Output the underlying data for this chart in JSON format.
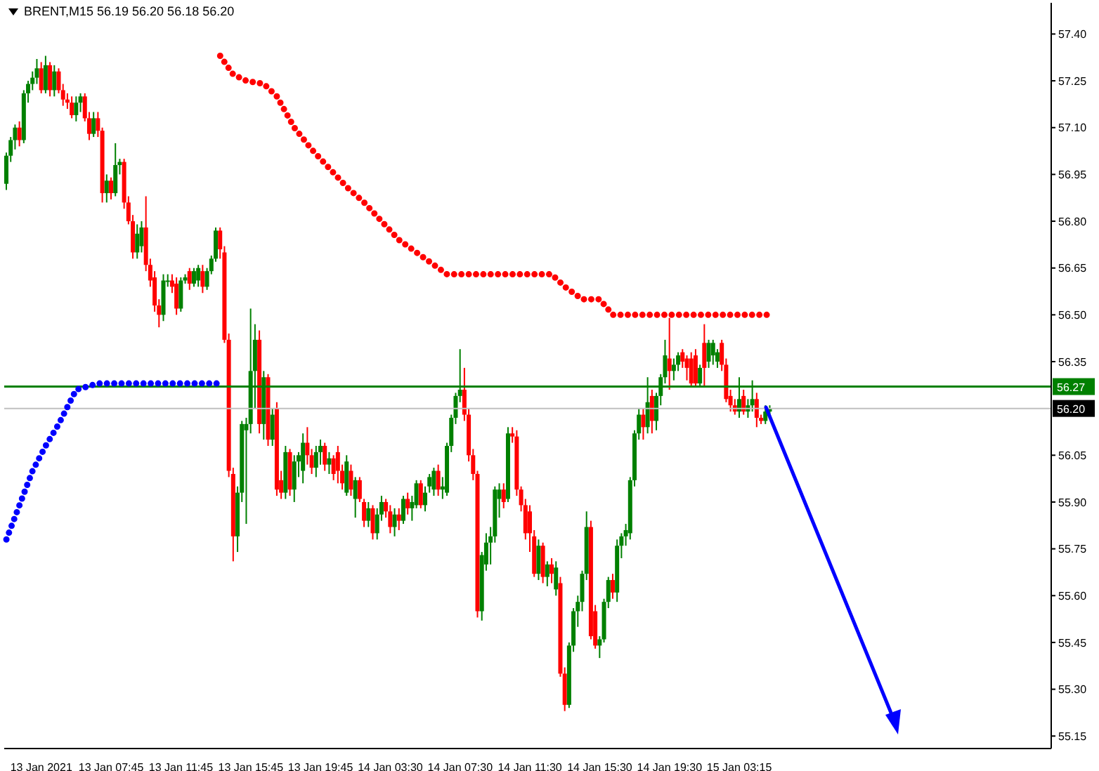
{
  "chart_data": {
    "type": "candlestick",
    "title": "BRENT,M15 56.19 56.20 56.18 56.20",
    "categories": [
      null,
      null,
      null,
      null,
      null,
      null,
      null,
      null,
      "13 Jan 2021",
      null,
      null,
      null,
      null,
      null,
      null,
      null,
      null,
      null,
      null,
      null,
      null,
      null,
      null,
      null,
      "13 Jan 07:45",
      null,
      null,
      null,
      null,
      null,
      null,
      null,
      null,
      null,
      null,
      null,
      null,
      null,
      null,
      null,
      "13 Jan 11:45",
      null,
      null,
      null,
      null,
      null,
      null,
      null,
      null,
      null,
      null,
      null,
      null,
      null,
      null,
      null,
      "13 Jan 15:45",
      null,
      null,
      null,
      null,
      null,
      null,
      null,
      null,
      null,
      null,
      null,
      null,
      null,
      null,
      null,
      "13 Jan 19:45",
      null,
      null,
      null,
      null,
      null,
      null,
      null,
      null,
      null,
      null,
      null,
      null,
      null,
      null,
      null,
      "14 Jan 03:30",
      null,
      null,
      null,
      null,
      null,
      null,
      null,
      null,
      null,
      null,
      null,
      null,
      null,
      null,
      null,
      "14 Jan 07:30",
      null,
      null,
      null,
      null,
      null,
      null,
      null,
      null,
      null,
      null,
      null,
      null,
      null,
      null,
      null,
      "14 Jan 11:30",
      null,
      null,
      null,
      null,
      null,
      null,
      null,
      null,
      null,
      null,
      null,
      null,
      null,
      null,
      null,
      "14 Jan 15:30",
      null,
      null,
      null,
      null,
      null,
      null,
      null,
      null,
      null,
      null,
      null,
      null,
      null,
      null,
      null,
      "14 Jan 19:30",
      null,
      null,
      null,
      null,
      null,
      null,
      null,
      null,
      null,
      null,
      null,
      null,
      null,
      null,
      null,
      "15 Jan 03:15",
      null,
      null,
      null,
      null,
      null,
      null,
      null,
      null,
      null,
      null,
      null,
      null,
      null,
      null,
      null,
      null,
      null,
      null,
      null,
      null,
      null,
      null,
      null,
      null,
      null,
      null,
      null,
      null,
      null,
      null,
      null,
      null,
      null,
      null,
      null,
      null,
      null,
      null,
      null,
      null,
      null,
      null,
      null,
      null,
      null,
      null,
      null,
      null,
      null,
      null,
      null,
      null,
      null,
      null,
      null,
      null,
      null,
      null,
      null,
      null,
      null,
      null,
      null,
      null,
      null,
      null,
      null,
      null,
      null,
      null,
      null
    ],
    "ohlc": [
      [
        56.92,
        57.02,
        56.9,
        57.01
      ],
      [
        57.01,
        57.07,
        56.99,
        57.06
      ],
      [
        57.06,
        57.11,
        57.03,
        57.1
      ],
      [
        57.1,
        57.12,
        57.04,
        57.06
      ],
      [
        57.06,
        57.22,
        57.05,
        57.21
      ],
      [
        57.21,
        57.25,
        57.18,
        57.24
      ],
      [
        57.24,
        57.28,
        57.22,
        57.26
      ],
      [
        57.26,
        57.32,
        57.24,
        57.29
      ],
      [
        57.29,
        57.31,
        57.21,
        57.22
      ],
      [
        57.22,
        57.33,
        57.21,
        57.3
      ],
      [
        57.3,
        57.31,
        57.2,
        57.22
      ],
      [
        57.22,
        57.3,
        57.2,
        57.28
      ],
      [
        57.28,
        57.29,
        57.21,
        57.22
      ],
      [
        57.22,
        57.24,
        57.17,
        57.19
      ],
      [
        57.19,
        57.21,
        57.16,
        57.18
      ],
      [
        57.18,
        57.2,
        57.13,
        57.14
      ],
      [
        57.14,
        57.2,
        57.12,
        57.18
      ],
      [
        57.18,
        57.21,
        57.15,
        57.2
      ],
      [
        57.2,
        57.21,
        57.12,
        57.13
      ],
      [
        57.13,
        57.15,
        57.06,
        57.08
      ],
      [
        57.08,
        57.15,
        57.07,
        57.13
      ],
      [
        57.13,
        57.15,
        57.07,
        57.09
      ],
      [
        57.09,
        57.1,
        56.86,
        56.89
      ],
      [
        56.89,
        56.95,
        56.86,
        56.93
      ],
      [
        56.93,
        56.94,
        56.87,
        56.89
      ],
      [
        56.89,
        57.05,
        56.88,
        56.98
      ],
      [
        56.98,
        57.0,
        56.95,
        56.99
      ],
      [
        56.99,
        57.0,
        56.84,
        56.86
      ],
      [
        56.86,
        56.88,
        56.79,
        56.8
      ],
      [
        56.8,
        56.82,
        56.68,
        56.7
      ],
      [
        56.7,
        56.79,
        56.68,
        56.76
      ],
      [
        56.72,
        56.8,
        56.7,
        56.78
      ],
      [
        56.78,
        56.88,
        56.64,
        56.66
      ],
      [
        56.66,
        56.68,
        56.59,
        56.61
      ],
      [
        56.62,
        56.64,
        56.51,
        56.53
      ],
      [
        56.53,
        56.55,
        56.46,
        56.5
      ],
      [
        56.5,
        56.63,
        56.48,
        56.61
      ],
      [
        56.61,
        56.63,
        56.59,
        56.61
      ],
      [
        56.61,
        56.63,
        56.57,
        56.59
      ],
      [
        56.6,
        56.62,
        56.5,
        56.52
      ],
      [
        56.52,
        56.62,
        56.51,
        56.61
      ],
      [
        56.61,
        56.63,
        56.6,
        56.62
      ],
      [
        56.64,
        56.65,
        56.58,
        56.6
      ],
      [
        56.6,
        56.65,
        56.59,
        56.64
      ],
      [
        56.61,
        56.66,
        56.59,
        56.65
      ],
      [
        56.64,
        56.66,
        56.57,
        56.59
      ],
      [
        56.59,
        56.65,
        56.58,
        56.64
      ],
      [
        56.64,
        56.69,
        56.63,
        56.68
      ],
      [
        56.68,
        56.78,
        56.67,
        56.77
      ],
      [
        56.77,
        56.78,
        56.68,
        56.71
      ],
      [
        56.7,
        56.72,
        56.41,
        56.42
      ],
      [
        56.42,
        56.44,
        55.98,
        56.0
      ],
      [
        55.99,
        56.01,
        55.71,
        55.79
      ],
      [
        55.79,
        55.95,
        55.74,
        55.93
      ],
      [
        55.93,
        56.16,
        55.9,
        56.15
      ],
      [
        56.13,
        56.17,
        55.83,
        56.15
      ],
      [
        56.15,
        56.52,
        56.12,
        56.32
      ],
      [
        56.32,
        56.47,
        56.2,
        56.42
      ],
      [
        56.42,
        56.45,
        56.12,
        56.15
      ],
      [
        56.15,
        56.32,
        56.1,
        56.3
      ],
      [
        56.3,
        56.31,
        56.08,
        56.1
      ],
      [
        56.1,
        56.2,
        56.08,
        56.18
      ],
      [
        56.2,
        56.22,
        55.92,
        55.94
      ],
      [
        55.97,
        56.0,
        55.91,
        55.93
      ],
      [
        55.93,
        56.08,
        55.91,
        56.06
      ],
      [
        56.06,
        56.07,
        55.92,
        55.94
      ],
      [
        55.94,
        56.05,
        55.9,
        56.03
      ],
      [
        56.03,
        56.06,
        55.98,
        56.05
      ],
      [
        56.0,
        56.12,
        55.96,
        56.09
      ],
      [
        56.09,
        56.14,
        56.02,
        56.05
      ],
      [
        56.05,
        56.07,
        55.99,
        56.01
      ],
      [
        56.01,
        56.08,
        55.98,
        56.06
      ],
      [
        56.06,
        56.1,
        56.02,
        56.08
      ],
      [
        56.08,
        56.09,
        56.0,
        56.02
      ],
      [
        56.02,
        56.06,
        55.99,
        56.04
      ],
      [
        56.04,
        56.05,
        55.97,
        55.99
      ],
      [
        56.06,
        56.08,
        55.96,
        56.0
      ],
      [
        56.0,
        56.02,
        55.94,
        55.96
      ],
      [
        55.93,
        56.05,
        55.92,
        56.03
      ],
      [
        56.0,
        56.02,
        55.92,
        55.94
      ],
      [
        55.91,
        55.98,
        55.85,
        55.97
      ],
      [
        55.97,
        55.98,
        55.9,
        55.91
      ],
      [
        55.9,
        55.91,
        55.82,
        55.84
      ],
      [
        55.84,
        55.9,
        55.82,
        55.88
      ],
      [
        55.88,
        55.89,
        55.78,
        55.8
      ],
      [
        55.8,
        55.88,
        55.78,
        55.86
      ],
      [
        55.86,
        55.92,
        55.84,
        55.9
      ],
      [
        55.9,
        55.91,
        55.85,
        55.87
      ],
      [
        55.87,
        55.89,
        55.8,
        55.82
      ],
      [
        55.82,
        55.88,
        55.79,
        55.86
      ],
      [
        55.86,
        55.88,
        55.81,
        55.84
      ],
      [
        55.84,
        55.92,
        55.83,
        55.91
      ],
      [
        55.91,
        55.93,
        55.86,
        55.88
      ],
      [
        55.88,
        55.92,
        55.84,
        55.9
      ],
      [
        55.89,
        55.97,
        55.88,
        55.96
      ],
      [
        55.96,
        55.97,
        55.88,
        55.89
      ],
      [
        55.89,
        55.95,
        55.87,
        55.93
      ],
      [
        55.95,
        55.99,
        55.93,
        55.98
      ],
      [
        55.94,
        56.01,
        55.92,
        56.0
      ],
      [
        56.0,
        56.02,
        55.92,
        55.94
      ],
      [
        55.94,
        55.98,
        55.91,
        55.95
      ],
      [
        55.93,
        56.09,
        55.92,
        56.08
      ],
      [
        56.08,
        56.18,
        56.06,
        56.17
      ],
      [
        56.17,
        56.25,
        56.15,
        56.24
      ],
      [
        56.24,
        56.39,
        56.22,
        56.26
      ],
      [
        56.26,
        56.33,
        56.16,
        56.18
      ],
      [
        56.18,
        56.2,
        56.03,
        56.05
      ],
      [
        56.05,
        56.07,
        55.97,
        55.99
      ],
      [
        55.99,
        56.0,
        55.53,
        55.55
      ],
      [
        55.55,
        55.74,
        55.52,
        55.73
      ],
      [
        55.7,
        55.8,
        55.68,
        55.77
      ],
      [
        55.77,
        55.82,
        55.7,
        55.79
      ],
      [
        55.79,
        55.95,
        55.77,
        55.94
      ],
      [
        55.91,
        55.96,
        55.85,
        55.94
      ],
      [
        55.94,
        55.96,
        55.88,
        55.9
      ],
      [
        55.91,
        56.14,
        55.9,
        56.12
      ],
      [
        56.12,
        56.14,
        56.09,
        56.11
      ],
      [
        56.11,
        56.13,
        55.92,
        55.94
      ],
      [
        55.94,
        55.95,
        55.87,
        55.89
      ],
      [
        55.89,
        55.91,
        55.78,
        55.8
      ],
      [
        55.87,
        55.89,
        55.74,
        55.8
      ],
      [
        55.79,
        55.81,
        55.66,
        55.67
      ],
      [
        55.67,
        55.78,
        55.65,
        55.76
      ],
      [
        55.76,
        55.77,
        55.64,
        55.66
      ],
      [
        55.66,
        55.71,
        55.63,
        55.7
      ],
      [
        55.7,
        55.72,
        55.64,
        55.67
      ],
      [
        55.62,
        55.71,
        55.6,
        55.69
      ],
      [
        55.64,
        55.66,
        55.34,
        55.35
      ],
      [
        55.35,
        55.37,
        55.23,
        55.25
      ],
      [
        55.25,
        55.45,
        55.24,
        55.44
      ],
      [
        55.44,
        55.56,
        55.42,
        55.55
      ],
      [
        55.55,
        55.6,
        55.5,
        55.58
      ],
      [
        55.58,
        55.68,
        55.55,
        55.67
      ],
      [
        55.67,
        55.87,
        55.65,
        55.82
      ],
      [
        55.82,
        55.84,
        55.46,
        55.47
      ],
      [
        55.55,
        55.57,
        55.43,
        55.44
      ],
      [
        55.44,
        55.47,
        55.4,
        55.46
      ],
      [
        55.46,
        55.59,
        55.45,
        55.58
      ],
      [
        55.58,
        55.66,
        55.56,
        55.65
      ],
      [
        55.65,
        55.67,
        55.59,
        55.61
      ],
      [
        55.61,
        55.78,
        55.58,
        55.76
      ],
      [
        55.76,
        55.8,
        55.72,
        55.79
      ],
      [
        55.79,
        55.83,
        55.76,
        55.81
      ],
      [
        55.8,
        55.98,
        55.78,
        55.97
      ],
      [
        55.97,
        56.13,
        55.95,
        56.12
      ],
      [
        56.12,
        56.2,
        56.1,
        56.18
      ],
      [
        56.18,
        56.2,
        56.1,
        56.14
      ],
      [
        56.14,
        56.3,
        56.12,
        56.22
      ],
      [
        56.24,
        56.26,
        56.12,
        56.16
      ],
      [
        56.16,
        56.25,
        56.13,
        56.24
      ],
      [
        56.24,
        56.31,
        56.21,
        56.3
      ],
      [
        56.3,
        56.42,
        56.28,
        56.37
      ],
      [
        56.36,
        56.49,
        56.26,
        56.32
      ],
      [
        56.32,
        56.36,
        56.29,
        56.34
      ],
      [
        56.34,
        56.38,
        56.32,
        56.37
      ],
      [
        56.38,
        56.39,
        56.33,
        56.35
      ],
      [
        56.36,
        56.37,
        56.29,
        56.33
      ],
      [
        56.36,
        56.38,
        56.27,
        56.28
      ],
      [
        56.37,
        56.39,
        56.27,
        56.28
      ],
      [
        56.28,
        56.34,
        56.27,
        56.33
      ],
      [
        56.41,
        56.47,
        56.27,
        56.33
      ],
      [
        56.35,
        56.42,
        56.33,
        56.41
      ],
      [
        56.37,
        56.42,
        56.34,
        56.41
      ],
      [
        56.35,
        56.39,
        56.33,
        56.38
      ],
      [
        56.41,
        56.42,
        56.32,
        56.34
      ],
      [
        56.34,
        56.36,
        56.22,
        56.23
      ],
      [
        56.24,
        56.26,
        56.19,
        56.21
      ],
      [
        56.21,
        56.23,
        56.18,
        56.19
      ],
      [
        56.19,
        56.3,
        56.17,
        56.23
      ],
      [
        56.24,
        56.26,
        56.18,
        56.19
      ],
      [
        56.19,
        56.23,
        56.17,
        56.21
      ],
      [
        56.21,
        56.29,
        56.19,
        56.23
      ],
      [
        56.23,
        56.25,
        56.14,
        56.17
      ],
      [
        56.17,
        56.18,
        56.15,
        56.16
      ],
      [
        56.16,
        56.21,
        56.15,
        56.19
      ],
      [
        56.19,
        56.21,
        56.18,
        56.2
      ],
      null,
      null,
      null,
      null,
      null,
      null,
      null,
      null,
      null,
      null,
      null,
      null,
      null,
      null,
      null,
      null,
      null,
      null,
      null,
      null,
      null,
      null,
      null,
      null,
      null,
      null,
      null,
      null,
      null,
      null,
      null,
      null,
      null,
      null,
      null,
      null,
      null,
      null,
      null,
      null,
      null,
      null,
      null,
      null,
      null,
      null,
      null,
      null,
      null,
      null,
      null,
      null,
      null,
      null,
      null,
      null,
      null,
      null,
      null,
      null,
      null,
      null,
      null,
      null
    ],
    "series": [
      {
        "type": "line",
        "color": "#ff0000",
        "line_style": "dotted",
        "values": [
          null,
          null,
          null,
          null,
          null,
          null,
          null,
          null,
          null,
          null,
          null,
          null,
          null,
          null,
          null,
          null,
          null,
          null,
          null,
          null,
          null,
          null,
          null,
          null,
          null,
          null,
          null,
          null,
          null,
          null,
          null,
          null,
          null,
          null,
          null,
          null,
          null,
          null,
          null,
          null,
          null,
          null,
          null,
          null,
          null,
          null,
          null,
          null,
          null,
          57.33,
          null,
          null,
          57.27,
          null,
          null,
          57.25,
          null,
          null,
          null,
          57.24,
          null,
          null,
          57.2,
          null,
          null,
          null,
          57.1,
          null,
          null,
          null,
          57.03,
          null,
          null,
          null,
          56.97,
          null,
          null,
          null,
          56.91,
          null,
          null,
          null,
          56.86,
          null,
          null,
          null,
          56.8,
          null,
          null,
          null,
          56.74,
          null,
          null,
          null,
          56.7,
          null,
          null,
          null,
          56.66,
          null,
          null,
          56.63,
          null,
          null,
          null,
          null,
          null,
          null,
          null,
          null,
          null,
          null,
          null,
          null,
          null,
          null,
          null,
          null,
          null,
          null,
          null,
          null,
          null,
          null,
          null,
          56.63,
          null,
          null,
          56.59,
          null,
          null,
          null,
          56.55,
          null,
          null,
          null,
          56.55,
          null,
          null,
          56.5,
          null,
          null,
          null,
          null,
          null,
          null,
          null,
          null,
          null,
          null,
          null,
          null,
          null,
          null,
          null,
          null,
          null,
          null,
          null,
          null,
          null,
          null,
          null,
          null,
          null,
          null,
          null,
          null,
          null,
          null,
          null,
          null,
          null,
          null,
          null,
          56.5,
          null,
          null,
          null,
          null,
          null,
          null,
          null,
          null,
          null,
          null,
          null,
          null,
          null,
          null,
          null,
          null,
          null,
          null,
          null,
          null,
          null,
          null,
          null,
          null,
          null,
          null,
          null,
          null,
          null,
          null,
          null,
          null,
          null,
          null,
          null,
          null,
          null,
          null,
          null,
          null,
          null,
          null,
          null,
          null,
          null,
          null,
          null,
          null,
          null,
          null,
          null,
          null,
          null,
          null,
          null,
          null,
          null,
          null,
          null,
          null,
          null,
          null,
          null,
          null
        ]
      },
      {
        "type": "line",
        "color": "#0000ff",
        "line_style": "dotted",
        "values": [
          55.78,
          null,
          null,
          55.89,
          null,
          null,
          56.0,
          null,
          null,
          56.08,
          null,
          null,
          56.15,
          null,
          null,
          null,
          56.26,
          null,
          null,
          null,
          null,
          56.28,
          null,
          null,
          null,
          null,
          null,
          null,
          null,
          null,
          null,
          null,
          null,
          null,
          null,
          null,
          null,
          null,
          null,
          null,
          null,
          null,
          null,
          null,
          null,
          null,
          null,
          null,
          null,
          56.28,
          null,
          null,
          null,
          null,
          null,
          null,
          null,
          null,
          null,
          null,
          null,
          null,
          null,
          null,
          null,
          null,
          null,
          null,
          null,
          null,
          null,
          null,
          null,
          null,
          null,
          null,
          null,
          null,
          null,
          null,
          null,
          null,
          null,
          null,
          null,
          null,
          null,
          null,
          null,
          null,
          null,
          null,
          null,
          null,
          null,
          null,
          null,
          null,
          null,
          null,
          null,
          null,
          null,
          null,
          null,
          null,
          null,
          null,
          null,
          null,
          null,
          null,
          null,
          null,
          null,
          null,
          null,
          null,
          null,
          null,
          null,
          null,
          null,
          null,
          null,
          null,
          null,
          null,
          null,
          null,
          null,
          null,
          null,
          null,
          null,
          null,
          null,
          null,
          null,
          null,
          null,
          null,
          null,
          null,
          null,
          null,
          null,
          null,
          null,
          null,
          null,
          null,
          null,
          null,
          null,
          null,
          null,
          null,
          null,
          null,
          null,
          null,
          null,
          null,
          null,
          null,
          null,
          null,
          null,
          null,
          null,
          null,
          null,
          null,
          null,
          null,
          null,
          null,
          null,
          null,
          null,
          null,
          null,
          null,
          null,
          null,
          null,
          null,
          null,
          null,
          null,
          null,
          null,
          null,
          null,
          null,
          null,
          null,
          null,
          null,
          null,
          null,
          null,
          null,
          null,
          null,
          null,
          null,
          null,
          null,
          null,
          null,
          null,
          null,
          null,
          null,
          null,
          null,
          null,
          null,
          null,
          null,
          null,
          null,
          null,
          null,
          null,
          null,
          null,
          null,
          null,
          null,
          null,
          null,
          null,
          null,
          null,
          null,
          null,
          null
        ]
      }
    ],
    "ylim": [
      55.11,
      57.5
    ],
    "yticks": [
      {
        "value": 55.15,
        "label": "55.15"
      },
      {
        "value": 55.3,
        "label": "55.30"
      },
      {
        "value": 55.45,
        "label": "55.45"
      },
      {
        "value": 55.6,
        "label": "55.60"
      },
      {
        "value": 55.75,
        "label": "55.75"
      },
      {
        "value": 55.9,
        "label": "55.90"
      },
      {
        "value": 56.05,
        "label": "56.05"
      },
      {
        "value": 56.35,
        "label": "56.35"
      },
      {
        "value": 56.5,
        "label": "56.50"
      },
      {
        "value": 56.65,
        "label": "56.65"
      },
      {
        "value": 56.8,
        "label": "56.80"
      },
      {
        "value": 56.95,
        "label": "56.95"
      },
      {
        "value": 57.1,
        "label": "57.10"
      },
      {
        "value": 57.25,
        "label": "57.25"
      },
      {
        "value": 57.4,
        "label": "57.40"
      }
    ],
    "ref_lines": [
      {
        "axis": "y",
        "value": 56.27,
        "label": "56.27",
        "color": "#008000"
      },
      {
        "axis": "y",
        "value": 56.2,
        "label": "56.20",
        "color": "#c0c0c0"
      }
    ]
  }
}
